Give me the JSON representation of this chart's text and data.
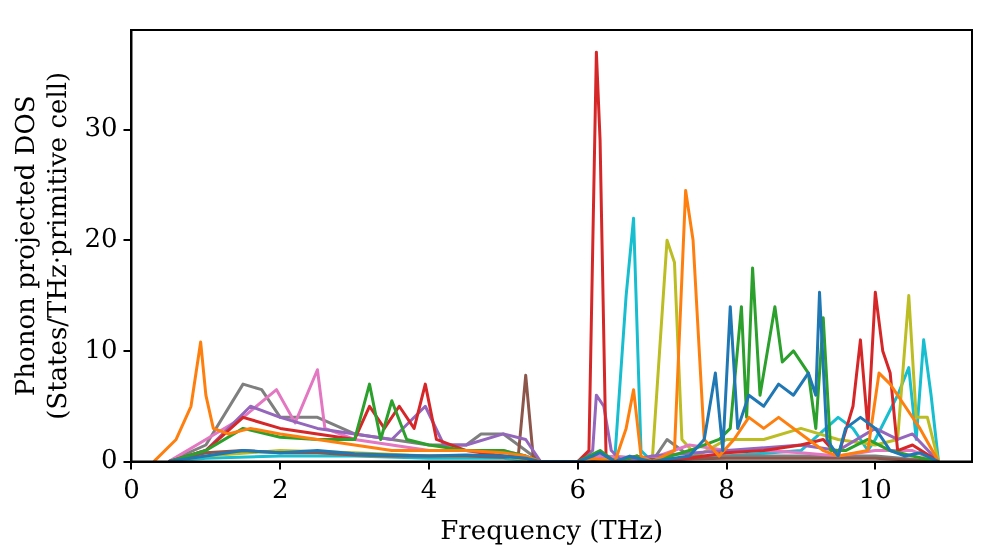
{
  "chart_data": {
    "type": "line",
    "xlabel": "Frequency (THz)",
    "ylabel": "Phonon projected DOS\n(States/THz·primitive cell)",
    "xlim": [
      0,
      11.3
    ],
    "ylim": [
      0,
      39
    ],
    "xticks": [
      0,
      2,
      4,
      6,
      8,
      10
    ],
    "yticks": [
      0,
      10,
      20,
      30
    ],
    "grid": false,
    "legend": false,
    "marker": "none",
    "line_style": "solid",
    "series": [
      {
        "color": "#1f77b4",
        "x": [
          0.5,
          1,
          1.5,
          2,
          2.5,
          3,
          3.5,
          4,
          4.5,
          5,
          5.3,
          5.5,
          6,
          6.2,
          6.3,
          6.5,
          6.7,
          6.8,
          7,
          7.5,
          7.7,
          7.85,
          7.95,
          8.05,
          8.15,
          8.3,
          8.5,
          8.7,
          8.9,
          9.1,
          9.2,
          9.25,
          9.35,
          9.5,
          9.6,
          9.8,
          10,
          10.2,
          10.4,
          10.6,
          10.85
        ],
        "values": [
          0,
          0.5,
          1,
          0.8,
          1,
          0.7,
          0.6,
          0.5,
          0.6,
          0.5,
          0.3,
          0,
          0,
          0.5,
          0.8,
          0,
          0.5,
          0.3,
          0,
          0.5,
          2,
          8,
          1,
          14,
          3,
          6,
          5,
          7,
          6,
          8,
          6,
          15.3,
          2,
          0.5,
          3,
          4,
          3,
          1,
          0.5,
          0.8,
          0
        ]
      },
      {
        "color": "#ff7f0e",
        "x": [
          0.3,
          0.6,
          0.8,
          0.93,
          1.0,
          1.1,
          1.3,
          1.6,
          2,
          2.5,
          3,
          3.5,
          4,
          4.5,
          5,
          5.3,
          5.5,
          6,
          6.2,
          6.3,
          6.5,
          6.65,
          6.75,
          6.85,
          7,
          7.3,
          7.45,
          7.55,
          7.7,
          7.9,
          8.1,
          8.3,
          8.5,
          8.7,
          9,
          9.3,
          9.5,
          9.9,
          10.05,
          10.2,
          10.4,
          10.6,
          10.85
        ],
        "values": [
          0,
          2,
          5,
          10.8,
          6,
          3,
          2.5,
          3,
          2.5,
          2,
          1.5,
          1,
          1,
          1,
          0.8,
          0.5,
          0,
          0,
          0.3,
          0.2,
          0,
          3,
          6.5,
          0.5,
          0,
          1,
          24.5,
          20,
          2,
          0.5,
          2,
          4,
          3,
          4,
          2.5,
          1,
          0.5,
          1,
          8,
          7,
          5,
          3,
          0
        ]
      },
      {
        "color": "#2ca02c",
        "x": [
          0.5,
          1,
          1.5,
          2,
          2.5,
          3,
          3.2,
          3.35,
          3.5,
          3.7,
          4,
          4.5,
          5,
          5.3,
          5.5,
          6,
          6.3,
          6.5,
          6.8,
          7,
          7.5,
          7.9,
          8.05,
          8.2,
          8.27,
          8.35,
          8.45,
          8.55,
          8.65,
          8.75,
          8.9,
          9.1,
          9.2,
          9.3,
          9.4,
          9.6,
          9.9,
          10.2,
          10.5,
          10.85
        ],
        "values": [
          0,
          1,
          3,
          2.2,
          2,
          2,
          7,
          2,
          5.5,
          2,
          1.5,
          1,
          1,
          0.5,
          0,
          0,
          1,
          0,
          0.5,
          0,
          1,
          2,
          3,
          14,
          4,
          17.5,
          6,
          10,
          14,
          9,
          10,
          8,
          3,
          13,
          1,
          1,
          2,
          1,
          0.5,
          0
        ]
      },
      {
        "color": "#d62728",
        "x": [
          0.5,
          1,
          1.5,
          2,
          2.5,
          3,
          3.2,
          3.4,
          3.6,
          3.8,
          3.95,
          4.1,
          4.5,
          5,
          5.3,
          5.5,
          6,
          6.15,
          6.25,
          6.3,
          6.38,
          6.5,
          6.8,
          7,
          7.5,
          8,
          8.5,
          9,
          9.3,
          9.5,
          9.7,
          9.8,
          9.9,
          10.0,
          10.1,
          10.2,
          10.3,
          10.5,
          10.85
        ],
        "values": [
          0,
          1,
          4,
          3,
          2.5,
          2,
          5,
          3,
          5,
          3,
          7,
          2,
          1,
          0.5,
          0.3,
          0,
          0,
          1,
          37,
          29,
          0.5,
          0,
          0.5,
          0,
          0.3,
          0.8,
          1,
          1.5,
          2,
          0.5,
          5,
          11,
          3,
          15.3,
          10,
          8,
          1,
          1.5,
          0
        ]
      },
      {
        "color": "#9467bd",
        "x": [
          0.5,
          1,
          1.6,
          2,
          2.5,
          3,
          3.5,
          3.95,
          4.2,
          4.5,
          5,
          5.3,
          5.5,
          6,
          6.2,
          6.25,
          6.35,
          6.45,
          6.6,
          7,
          8,
          9,
          9.5,
          10,
          10.3,
          10.5,
          10.85
        ],
        "values": [
          0,
          1,
          5,
          4,
          3,
          2.5,
          2,
          5,
          1.5,
          1.5,
          2.5,
          2,
          0,
          0,
          1,
          6,
          5,
          1,
          0,
          0.5,
          1,
          1.5,
          1,
          3,
          2,
          2.5,
          0
        ]
      },
      {
        "color": "#8c564b",
        "x": [
          0.5,
          1,
          1.5,
          2,
          2.5,
          3,
          3.5,
          4,
          4.5,
          5,
          5.2,
          5.3,
          5.4,
          5.5,
          6,
          7,
          8,
          9,
          10,
          10.85
        ],
        "values": [
          0,
          0.8,
          1,
          0.8,
          0.8,
          0.6,
          0.5,
          0.5,
          0.5,
          0.4,
          0.5,
          7.8,
          0.5,
          0,
          0,
          0.2,
          0.3,
          0.3,
          0.3,
          0
        ]
      },
      {
        "color": "#e377c2",
        "x": [
          0.5,
          1,
          1.5,
          1.95,
          2.2,
          2.5,
          2.6,
          3,
          3.5,
          4,
          4.5,
          5,
          5.3,
          5.5,
          6,
          6.3,
          7,
          7.5,
          8,
          8.5,
          9,
          9.5,
          10,
          10.5,
          10.85
        ],
        "values": [
          0,
          2,
          4,
          6.5,
          3.5,
          8.3,
          3,
          2,
          1.5,
          1,
          1,
          1,
          0.5,
          0,
          0,
          0.5,
          0.3,
          1.5,
          1,
          1,
          0.8,
          0.5,
          1,
          1,
          0
        ]
      },
      {
        "color": "#7f7f7f",
        "x": [
          0.5,
          1,
          1.5,
          1.75,
          2,
          2.5,
          3,
          3.5,
          4,
          4.5,
          4.7,
          5,
          5.3,
          5.5,
          6,
          6.3,
          7,
          7.2,
          7.5,
          8,
          9,
          10,
          10.85
        ],
        "values": [
          0,
          1.5,
          7,
          6.5,
          4,
          4,
          2.5,
          2,
          1.5,
          1.5,
          2.5,
          2.5,
          1,
          0,
          0,
          0.5,
          0,
          2,
          0.5,
          0.5,
          0.5,
          0.5,
          0
        ]
      },
      {
        "color": "#bcbd22",
        "x": [
          0.5,
          1,
          2,
          3,
          4,
          5,
          5.5,
          6,
          6.5,
          7,
          7.1,
          7.2,
          7.3,
          7.4,
          7.6,
          8,
          8.5,
          9,
          9.5,
          10,
          10.3,
          10.45,
          10.55,
          10.7,
          10.85
        ],
        "values": [
          0,
          0.5,
          1,
          0.8,
          0.5,
          0.5,
          0,
          0,
          0.5,
          0,
          10,
          20,
          18,
          2,
          0.5,
          2,
          2,
          3,
          2,
          1.5,
          2,
          15,
          4,
          4,
          0
        ]
      },
      {
        "color": "#17becf",
        "x": [
          0.5,
          1,
          2,
          3,
          4,
          5,
          5.5,
          6,
          6.5,
          6.65,
          6.75,
          6.85,
          7,
          8,
          9,
          9.5,
          9.7,
          9.9,
          10,
          10.3,
          10.45,
          10.55,
          10.65,
          10.75,
          10.85
        ],
        "values": [
          0,
          0.3,
          0.5,
          0.5,
          0.3,
          0.3,
          0,
          0,
          0.5,
          15,
          22,
          1,
          0,
          0.5,
          1,
          4,
          3,
          1,
          2,
          6,
          8.5,
          2,
          11,
          6,
          0
        ]
      }
    ]
  }
}
